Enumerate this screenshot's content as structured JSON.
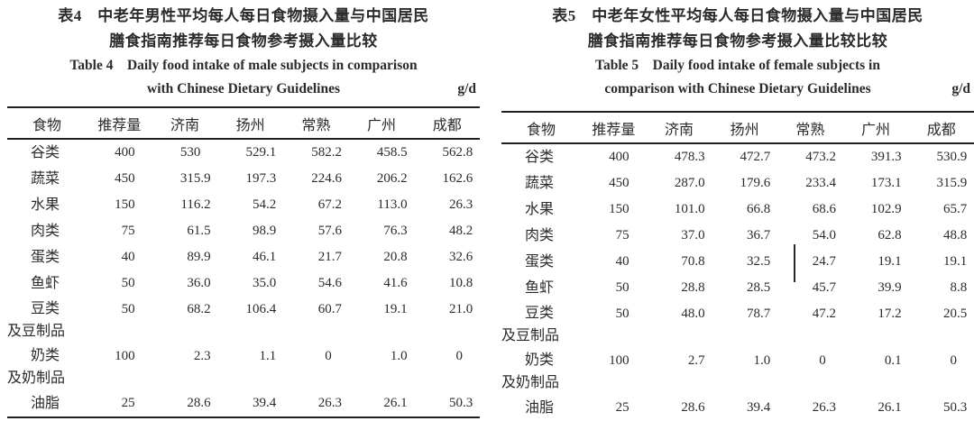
{
  "page": {
    "background": "#ffffff",
    "text_color": "#2b2b2b",
    "rule_color": "#1f1f1f"
  },
  "tables": [
    {
      "id": "table-4",
      "title_zh": [
        "表4　中老年男性平均每人每日食物摄入量与中国居民",
        "膳食指南推荐每日食物参考摄入量比较"
      ],
      "title_en": [
        "Table 4　Daily food intake of male subjects in comparison",
        "with Chinese Dietary Guidelines"
      ],
      "unit": "g/d",
      "columns": [
        "食物",
        "推荐量",
        "济南",
        "扬州",
        "常熟",
        "广州",
        "成都"
      ],
      "rows": [
        {
          "food": [
            "谷类"
          ],
          "values": [
            "400",
            "530",
            "529.1",
            "582.2",
            "458.5",
            "562.8"
          ]
        },
        {
          "food": [
            "蔬菜"
          ],
          "values": [
            "450",
            "315.9",
            "197.3",
            "224.6",
            "206.2",
            "162.6"
          ]
        },
        {
          "food": [
            "水果"
          ],
          "values": [
            "150",
            "116.2",
            "54.2",
            "67.2",
            "113.0",
            "26.3"
          ]
        },
        {
          "food": [
            "肉类"
          ],
          "values": [
            "75",
            "61.5",
            "98.9",
            "57.6",
            "76.3",
            "48.2"
          ]
        },
        {
          "food": [
            "蛋类"
          ],
          "values": [
            "40",
            "89.9",
            "46.1",
            "21.7",
            "20.8",
            "32.6"
          ]
        },
        {
          "food": [
            "鱼虾"
          ],
          "values": [
            "50",
            "36.0",
            "35.0",
            "54.6",
            "41.6",
            "10.8"
          ]
        },
        {
          "food": [
            "豆类",
            "及豆制品"
          ],
          "values": [
            "50",
            "68.2",
            "106.4",
            "60.7",
            "19.1",
            "21.0"
          ]
        },
        {
          "food": [
            "奶类",
            "及奶制品"
          ],
          "values": [
            "100",
            "2.3",
            "1.1",
            "0",
            "1.0",
            "0"
          ]
        },
        {
          "food": [
            "油脂"
          ],
          "values": [
            "25",
            "28.6",
            "39.4",
            "26.3",
            "26.1",
            "50.3"
          ]
        }
      ]
    },
    {
      "id": "table-5",
      "title_zh": [
        "表5　中老年女性平均每人每日食物摄入量与中国居民",
        "膳食指南推荐每日食物参考摄入量比较比较"
      ],
      "title_en": [
        "Table 5　Daily food intake of female subjects in",
        "comparison with Chinese Dietary Guidelines"
      ],
      "unit": "g/d",
      "columns": [
        "食物",
        "推荐量",
        "济南",
        "扬州",
        "常熟",
        "广州",
        "成都"
      ],
      "rows": [
        {
          "food": [
            "谷类"
          ],
          "values": [
            "400",
            "478.3",
            "472.7",
            "473.2",
            "391.3",
            "530.9"
          ]
        },
        {
          "food": [
            "蔬菜"
          ],
          "values": [
            "450",
            "287.0",
            "179.6",
            "233.4",
            "173.1",
            "315.9"
          ]
        },
        {
          "food": [
            "水果"
          ],
          "values": [
            "150",
            "101.0",
            "66.8",
            "68.6",
            "102.9",
            "65.7"
          ]
        },
        {
          "food": [
            "肉类"
          ],
          "values": [
            "75",
            "37.0",
            "36.7",
            "54.0",
            "62.8",
            "48.8"
          ]
        },
        {
          "food": [
            "蛋类"
          ],
          "values": [
            "40",
            "70.8",
            "32.5",
            "24.7",
            "19.1",
            "19.1"
          ]
        },
        {
          "food": [
            "鱼虾"
          ],
          "values": [
            "50",
            "28.8",
            "28.5",
            "45.7",
            "39.9",
            "8.8"
          ]
        },
        {
          "food": [
            "豆类",
            "及豆制品"
          ],
          "values": [
            "50",
            "48.0",
            "78.7",
            "47.2",
            "17.2",
            "20.5"
          ]
        },
        {
          "food": [
            "奶类",
            "及奶制品"
          ],
          "values": [
            "100",
            "2.7",
            "1.0",
            "0",
            "0.1",
            "0"
          ]
        },
        {
          "food": [
            "油脂"
          ],
          "values": [
            "25",
            "28.6",
            "39.4",
            "26.3",
            "26.1",
            "50.3"
          ]
        }
      ]
    }
  ]
}
